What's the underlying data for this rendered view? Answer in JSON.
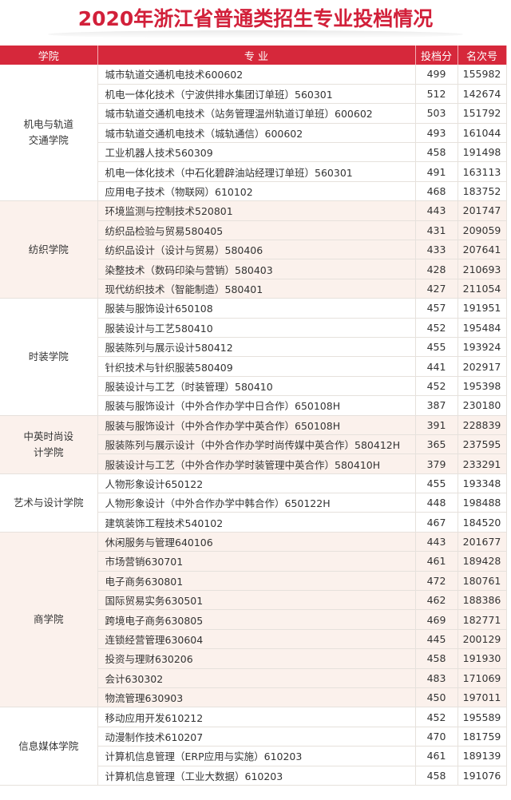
{
  "title": "2020年浙江省普通类招生专业投档情况",
  "headers": {
    "college": "学院",
    "major": "专  业",
    "score": "投档分",
    "rank": "名次号"
  },
  "groups": [
    {
      "college": "机电与轨道交通学院",
      "rows": [
        [
          "城市轨道交通机电技术600602",
          "499",
          "155982"
        ],
        [
          "机电一体化技术（宁波供排水集团订单班）560301",
          "512",
          "142674"
        ],
        [
          "城市轨道交通机电技术（站务管理温州轨道订单班）600602",
          "503",
          "151792"
        ],
        [
          "城市轨道交通机电技术（城轨通信）600602",
          "493",
          "161044"
        ],
        [
          "工业机器人技术560309",
          "458",
          "191498"
        ],
        [
          "机电一体化技术（中石化碧辟油站经理订单班）560301",
          "491",
          "163113"
        ],
        [
          "应用电子技术（物联网）610102",
          "468",
          "183752"
        ]
      ]
    },
    {
      "college": "纺织学院",
      "rows": [
        [
          "环境监测与控制技术520801",
          "443",
          "201747"
        ],
        [
          "纺织品检验与贸易580405",
          "431",
          "209059"
        ],
        [
          "纺织品设计（设计与贸易）580406",
          "433",
          "207641"
        ],
        [
          "染整技术（数码印染与营销）580403",
          "428",
          "210693"
        ],
        [
          "现代纺织技术（智能制造）580401",
          "427",
          "211054"
        ]
      ]
    },
    {
      "college": "时装学院",
      "rows": [
        [
          "服装与服饰设计650108",
          "457",
          "191951"
        ],
        [
          "服装设计与工艺580410",
          "452",
          "195484"
        ],
        [
          "服装陈列与展示设计580412",
          "455",
          "193924"
        ],
        [
          "针织技术与针织服装580409",
          "441",
          "202917"
        ],
        [
          "服装设计与工艺（时装管理）580410",
          "452",
          "195398"
        ],
        [
          "服装与服饰设计（中外合作办学中日合作）650108H",
          "387",
          "230180"
        ]
      ]
    },
    {
      "college": "中英时尚设计学院",
      "rows": [
        [
          "服装与服饰设计（中外合作办学中英合作）650108H",
          "391",
          "228839"
        ],
        [
          "服装陈列与展示设计（中外合作办学时尚传媒中英合作）580412H",
          "365",
          "237595"
        ],
        [
          "服装设计与工艺（中外合作办学时装管理中英合作）580410H",
          "379",
          "233291"
        ]
      ]
    },
    {
      "college": "艺术与设计学院",
      "rows": [
        [
          "人物形象设计650122",
          "455",
          "193348"
        ],
        [
          "人物形象设计（中外合作办学中韩合作）650122H",
          "448",
          "198488"
        ],
        [
          "建筑装饰工程技术540102",
          "467",
          "184520"
        ]
      ]
    },
    {
      "college": "商学院",
      "rows": [
        [
          "休闲服务与管理640106",
          "443",
          "201677"
        ],
        [
          "市场营销630701",
          "461",
          "189428"
        ],
        [
          "电子商务630801",
          "472",
          "180761"
        ],
        [
          "国际贸易实务630501",
          "462",
          "188386"
        ],
        [
          "跨境电子商务630805",
          "469",
          "182771"
        ],
        [
          "连锁经营管理630604",
          "445",
          "200129"
        ],
        [
          "投资与理财630206",
          "458",
          "191930"
        ],
        [
          "会计630302",
          "483",
          "171069"
        ],
        [
          "物流管理630903",
          "450",
          "197011"
        ]
      ]
    },
    {
      "college": "信息媒体学院",
      "rows": [
        [
          "移动应用开发610212",
          "452",
          "195589"
        ],
        [
          "动漫制作技术610207",
          "470",
          "181759"
        ],
        [
          "计算机信息管理（ERP应用与实施）610203",
          "461",
          "189139"
        ],
        [
          "计算机信息管理（工业大数据）610203",
          "458",
          "191076"
        ]
      ]
    }
  ]
}
